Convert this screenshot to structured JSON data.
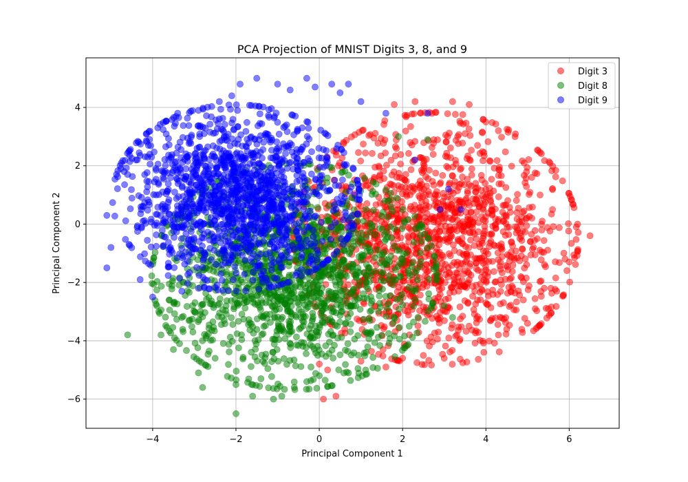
{
  "chart_data": {
    "type": "scatter",
    "title": "PCA Projection of MNIST Digits 3, 8, and 9",
    "xlabel": "Principal Component 1",
    "ylabel": "Principal Component 2",
    "xlim": [
      -5.6,
      7.2
    ],
    "ylim": [
      -7.0,
      5.7
    ],
    "xticks": [
      -4,
      -2,
      0,
      2,
      4,
      6
    ],
    "yticks": [
      -6,
      -4,
      -2,
      0,
      2,
      4
    ],
    "xtick_labels": [
      "−4",
      "−2",
      "0",
      "2",
      "4",
      "6"
    ],
    "ytick_labels": [
      "−6",
      "−4",
      "−2",
      "0",
      "2",
      "4"
    ],
    "grid": true,
    "legend_position": "top-right",
    "marker_alpha": 0.5,
    "series": [
      {
        "name": "Digit 3",
        "color": "#ff0000",
        "center": [
          2.8,
          -0.5
        ],
        "spread": [
          1.5,
          1.9
        ],
        "points": [
          [
            6.5,
            -0.4
          ],
          [
            6.2,
            0.0
          ],
          [
            5.9,
            -1.2
          ],
          [
            5.7,
            -2.3
          ],
          [
            5.5,
            -2.9
          ],
          [
            5.1,
            1.6
          ],
          [
            4.7,
            3.0
          ],
          [
            4.3,
            3.2
          ],
          [
            4.0,
            3.5
          ],
          [
            3.6,
            4.1
          ],
          [
            3.2,
            4.2
          ],
          [
            2.3,
            4.2
          ],
          [
            1.8,
            4.1
          ],
          [
            3.5,
            3.1
          ],
          [
            5.0,
            -3.4
          ],
          [
            4.5,
            -3.6
          ],
          [
            4.3,
            -3.8
          ],
          [
            3.0,
            -4.6
          ],
          [
            2.5,
            -4.5
          ],
          [
            2.0,
            -4.6
          ],
          [
            1.6,
            -4.9
          ],
          [
            1.0,
            -4.7
          ],
          [
            0.4,
            -5.9
          ],
          [
            0.1,
            -6.0
          ],
          [
            0.2,
            -5.0
          ],
          [
            0.0,
            -4.8
          ],
          [
            4.0,
            -2.7
          ],
          [
            3.8,
            2.7
          ],
          [
            5.3,
            1.0
          ],
          [
            5.6,
            0.5
          ],
          [
            6.0,
            -1.3
          ],
          [
            5.4,
            -2.2
          ],
          [
            4.9,
            -2.6
          ]
        ]
      },
      {
        "name": "Digit 8",
        "color": "#008000",
        "center": [
          -0.6,
          -1.8
        ],
        "spread": [
          1.5,
          1.7
        ],
        "points": [
          [
            -4.6,
            -3.8
          ],
          [
            -3.8,
            -3.8
          ],
          [
            -3.5,
            -4.3
          ],
          [
            -2.9,
            -5.1
          ],
          [
            -2.8,
            -5.6
          ],
          [
            -2.0,
            -6.5
          ],
          [
            -2.0,
            -5.5
          ],
          [
            -1.6,
            -5.9
          ],
          [
            -1.1,
            -6.0
          ],
          [
            -0.9,
            -5.9
          ],
          [
            -0.6,
            -5.6
          ],
          [
            -0.3,
            -5.4
          ],
          [
            0.0,
            -5.2
          ],
          [
            0.7,
            -5.1
          ],
          [
            3.2,
            -3.2
          ],
          [
            3.0,
            -2.8
          ],
          [
            2.6,
            2.9
          ],
          [
            1.9,
            3.0
          ],
          [
            -3.6,
            -2.6
          ],
          [
            -3.9,
            -2.8
          ],
          [
            -3.3,
            -3.2
          ],
          [
            -2.5,
            -4.6
          ],
          [
            -1.4,
            -5.3
          ],
          [
            -0.2,
            -4.9
          ]
        ]
      },
      {
        "name": "Digit 9",
        "color": "#0000ff",
        "center": [
          -2.0,
          0.9
        ],
        "spread": [
          1.3,
          1.4
        ],
        "points": [
          [
            -5.1,
            0.3
          ],
          [
            -5.1,
            -1.5
          ],
          [
            -5.0,
            -0.8
          ],
          [
            -4.6,
            1.7
          ],
          [
            -4.4,
            2.2
          ],
          [
            -4.1,
            2.7
          ],
          [
            -3.4,
            3.8
          ],
          [
            -2.9,
            3.9
          ],
          [
            -2.4,
            4.2
          ],
          [
            -2.1,
            4.4
          ],
          [
            -1.9,
            4.8
          ],
          [
            -1.5,
            5.0
          ],
          [
            -1.0,
            4.8
          ],
          [
            -0.7,
            4.6
          ],
          [
            -0.3,
            5.0
          ],
          [
            -0.1,
            4.7
          ],
          [
            0.3,
            4.8
          ],
          [
            0.5,
            4.5
          ],
          [
            0.7,
            4.8
          ],
          [
            1.0,
            4.2
          ],
          [
            -4.3,
            -1.9
          ],
          [
            -4.0,
            -2.5
          ],
          [
            -3.3,
            -2.3
          ],
          [
            -2.9,
            -2.2
          ],
          [
            1.6,
            3.8
          ],
          [
            2.6,
            3.8
          ],
          [
            2.3,
            2.2
          ],
          [
            3.1,
            1.2
          ],
          [
            2.9,
            0.5
          ],
          [
            3.4,
            0.5
          ],
          [
            -0.2,
            -1.1
          ]
        ]
      }
    ]
  }
}
